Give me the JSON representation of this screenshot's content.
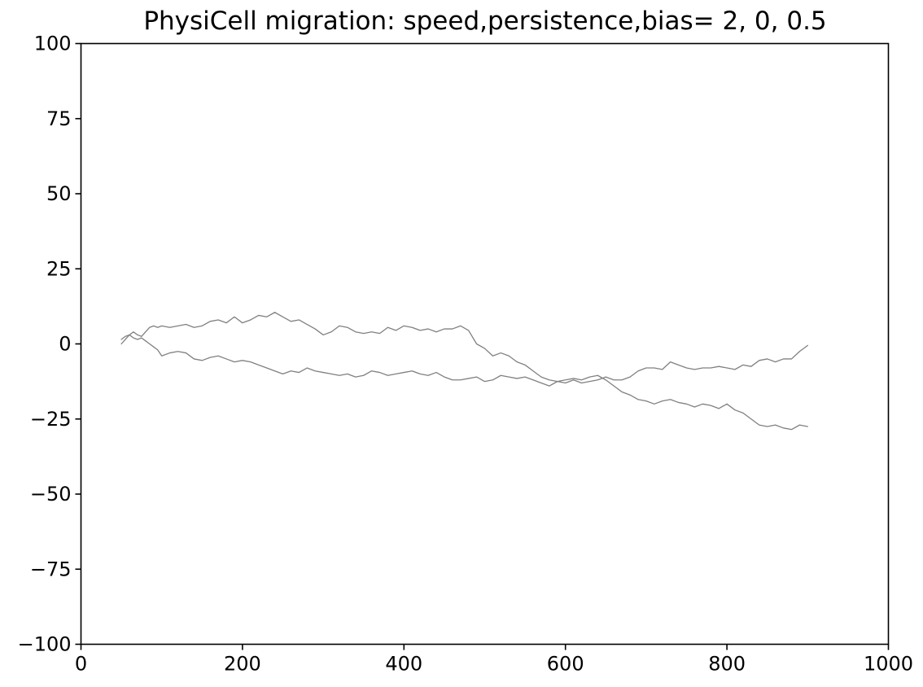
{
  "chart_data": {
    "type": "line",
    "title": "PhysiCell migration: speed,persistence,bias= 2, 0, 0.5",
    "xlabel": "",
    "ylabel": "",
    "xlim": [
      0,
      1000
    ],
    "ylim": [
      -100,
      100
    ],
    "xticks": [
      0,
      200,
      400,
      600,
      800,
      1000
    ],
    "xtick_labels": [
      "0",
      "200",
      "400",
      "600",
      "800",
      "1000"
    ],
    "yticks": [
      100,
      75,
      50,
      25,
      0,
      -25,
      -50,
      -75,
      -100
    ],
    "ytick_labels": [
      "100",
      "75",
      "50",
      "25",
      "0",
      "−25",
      "−50",
      "−75",
      "−100"
    ],
    "grid": false,
    "line_color": "#808080",
    "series": [
      {
        "x": [
          50,
          55,
          60,
          65,
          70,
          75,
          80,
          85,
          90,
          95,
          100,
          110,
          120,
          130,
          140,
          150,
          160,
          170,
          180,
          190,
          200,
          210,
          220,
          230,
          240,
          250,
          260,
          270,
          280,
          290,
          300,
          310,
          320,
          330,
          340,
          350,
          360,
          370,
          380,
          390,
          400,
          410,
          420,
          430,
          440,
          450,
          460,
          470,
          480,
          490,
          500,
          510,
          520,
          530,
          540,
          550,
          560,
          570,
          580,
          590,
          600,
          610,
          620,
          630,
          640,
          650,
          660,
          670,
          680,
          690,
          700,
          710,
          720,
          730,
          740,
          750,
          760,
          770,
          780,
          790,
          800,
          810,
          820,
          830,
          840,
          850,
          860,
          870,
          880,
          890,
          900
        ],
        "y": [
          0,
          1.5,
          3,
          4,
          3,
          2.5,
          4,
          5.5,
          6,
          5.5,
          6,
          5.5,
          6,
          6.5,
          5.5,
          6,
          7.5,
          8,
          7,
          9,
          7,
          8,
          9.5,
          9,
          10.5,
          9,
          7.5,
          8,
          6.5,
          5,
          3,
          4,
          6,
          5.5,
          4,
          3.5,
          4,
          3.5,
          5.5,
          4.5,
          6,
          5.5,
          4.5,
          5,
          4,
          5,
          5,
          6,
          4.5,
          0,
          -1.5,
          -4,
          -3,
          -4,
          -6,
          -7,
          -9,
          -11,
          -12,
          -12.5,
          -13,
          -12,
          -13,
          -12.5,
          -12,
          -11,
          -12,
          -12,
          -11,
          -9,
          -8,
          -8,
          -8.5,
          -6,
          -7,
          -8,
          -8.5,
          -8,
          -8,
          -7.5,
          -8,
          -8.5,
          -7,
          -7.5,
          -5.5,
          -5,
          -6,
          -5,
          -5,
          -2.5,
          -0.5
        ]
      },
      {
        "x": [
          50,
          55,
          60,
          65,
          70,
          75,
          80,
          85,
          90,
          95,
          100,
          110,
          120,
          130,
          140,
          150,
          160,
          170,
          180,
          190,
          200,
          210,
          220,
          230,
          240,
          250,
          260,
          270,
          280,
          290,
          300,
          310,
          320,
          330,
          340,
          350,
          360,
          370,
          380,
          390,
          400,
          410,
          420,
          430,
          440,
          450,
          460,
          470,
          480,
          490,
          500,
          510,
          520,
          530,
          540,
          550,
          560,
          570,
          580,
          590,
          600,
          610,
          620,
          630,
          640,
          650,
          660,
          670,
          680,
          690,
          700,
          710,
          720,
          730,
          740,
          750,
          760,
          770,
          780,
          790,
          800,
          810,
          820,
          830,
          840,
          850,
          860,
          870,
          880,
          890,
          900
        ],
        "y": [
          1.5,
          2.5,
          3,
          2,
          1.5,
          2,
          1,
          0,
          -1,
          -2,
          -4,
          -3,
          -2.5,
          -3,
          -5,
          -5.5,
          -4.5,
          -4,
          -5,
          -6,
          -5.5,
          -6,
          -7,
          -8,
          -9,
          -10,
          -9,
          -9.5,
          -8,
          -9,
          -9.5,
          -10,
          -10.5,
          -10,
          -11,
          -10.5,
          -9,
          -9.5,
          -10.5,
          -10,
          -9.5,
          -9,
          -10,
          -10.5,
          -9.5,
          -11,
          -12,
          -12,
          -11.5,
          -11,
          -12.5,
          -12,
          -10.5,
          -11,
          -11.5,
          -11,
          -12,
          -13,
          -14,
          -12.5,
          -12,
          -11.5,
          -12,
          -11,
          -10.5,
          -12,
          -14,
          -16,
          -17,
          -18.5,
          -19,
          -20,
          -19,
          -18.5,
          -19.5,
          -20,
          -21,
          -20,
          -20.5,
          -21.5,
          -20,
          -22,
          -23,
          -25,
          -27,
          -27.5,
          -27,
          -28,
          -28.5,
          -27,
          -27.5
        ]
      }
    ]
  }
}
